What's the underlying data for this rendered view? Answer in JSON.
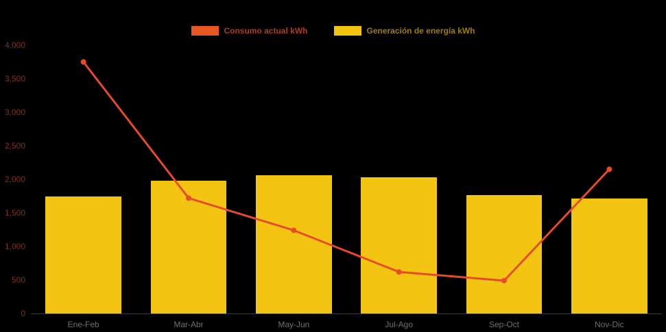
{
  "colors": {
    "background": "#000000",
    "axis_line": "#3a3a3a",
    "y_tick_label": "#803020",
    "x_tick_label": "#6f6f6f"
  },
  "legend": {
    "items": [
      {
        "label": "Consumo actual kWh",
        "swatch_color": "#e8571f",
        "text_color": "#a93f1f"
      },
      {
        "label": "Generación de energía kWh",
        "swatch_color": "#f3c40f",
        "text_color": "#9f7f00"
      }
    ]
  },
  "chart_data": {
    "type": "combo",
    "title": "",
    "categories": [
      "Ene-Feb",
      "Mar-Abr",
      "May-Jun",
      "Jul-Ago",
      "Sep-Oct",
      "Nov-Dic"
    ],
    "series": [
      {
        "name": "Consumo actual kWh",
        "type": "line",
        "color": "#e64c2a",
        "values": [
          3750,
          1720,
          1240,
          620,
          490,
          2150
        ]
      },
      {
        "name": "Generación de energía kWh",
        "type": "bar",
        "color": "#f3c512",
        "values": [
          1750,
          1975,
          2060,
          2030,
          1765,
          1715
        ]
      }
    ],
    "xlabel": "",
    "ylabel": "",
    "ylim": [
      0,
      4000
    ],
    "y_ticks": [
      0,
      500,
      1000,
      1500,
      2000,
      2500,
      3000,
      3500,
      4000
    ],
    "y_tick_labels": [
      "0",
      "500",
      "1,000",
      "1,500",
      "2,000",
      "2,500",
      "3,000",
      "3,500",
      "4,000"
    ],
    "grid": false,
    "legend_position": "top-center"
  }
}
